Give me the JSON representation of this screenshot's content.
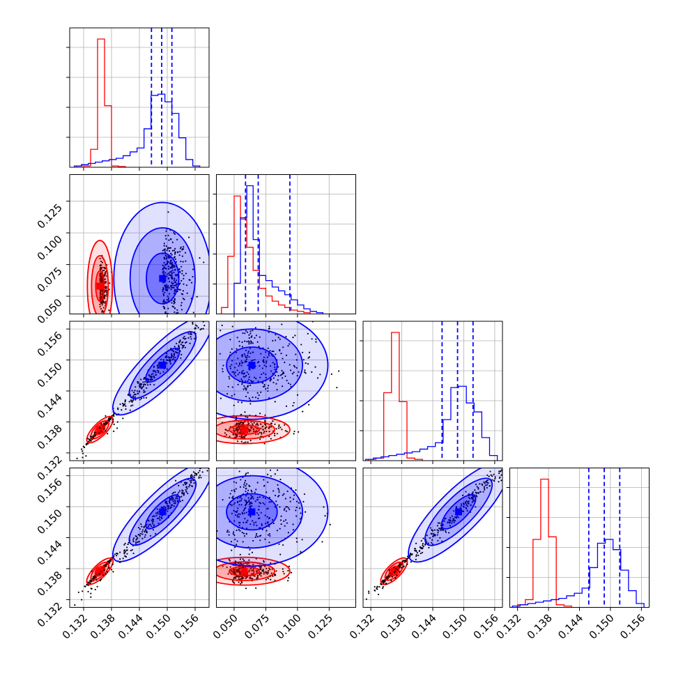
{
  "chart_data": {
    "type": "scatter",
    "plot_kind": "corner",
    "grid": true,
    "legend": "none",
    "n_params": 4,
    "colors": {
      "red": "#ff0000",
      "blue": "#0000ff"
    },
    "ranges": [
      [
        0.129,
        0.159
      ],
      [
        0.036,
        0.146
      ],
      [
        0.1305,
        0.1575
      ],
      [
        0.1305,
        0.1575
      ]
    ],
    "ticks": [
      [
        "0.132",
        "0.138",
        "0.144",
        "0.150",
        "0.156"
      ],
      [
        "0.050",
        "0.075",
        "0.100",
        "0.125"
      ],
      [
        "0.132",
        "0.138",
        "0.144",
        "0.150",
        "0.156"
      ],
      [
        "0.132",
        "0.138",
        "0.144",
        "0.150",
        "0.156"
      ]
    ],
    "series": [
      {
        "color": "red",
        "quantiles": [],
        "centers": [
          0.1355,
          0.058,
          0.1365,
          0.1375
        ],
        "hist": [
          {
            "edges_from": 0.1305,
            "bin": 0.0015,
            "heights": [
              0.01,
              0.01,
              0.14,
              1.0,
              0.48,
              0.01,
              0.005
            ]
          },
          {
            "edges_from": 0.04,
            "bin": 0.005,
            "heights": [
              0.05,
              0.45,
              0.92,
              0.74,
              0.52,
              0.34,
              0.2,
              0.14,
              0.1,
              0.07,
              0.05,
              0.03,
              0.02,
              0.01
            ]
          },
          {
            "edges_from": 0.1315,
            "bin": 0.0015,
            "heights": [
              0.01,
              0.02,
              0.53,
              1.0,
              0.46,
              0.02,
              0.01
            ]
          },
          {
            "edges_from": 0.132,
            "bin": 0.0015,
            "heights": [
              0.02,
              0.06,
              0.53,
              1.0,
              0.55,
              0.02,
              0.01
            ]
          }
        ]
      },
      {
        "color": "blue",
        "quantiles": [
          [
            0.1466,
            0.1488,
            0.151
          ],
          [
            0.059,
            0.069,
            0.094
          ],
          [
            0.1458,
            0.1488,
            0.1518
          ],
          [
            0.1458,
            0.1488,
            0.1518
          ]
        ],
        "centers": [
          0.149,
          0.064,
          0.149,
          0.149
        ],
        "hist": [
          {
            "edges_from": 0.13,
            "bin": 0.0015,
            "heights": [
              0.01,
              0.02,
              0.03,
              0.04,
              0.05,
              0.06,
              0.07,
              0.09,
              0.12,
              0.15,
              0.3,
              0.56,
              0.57,
              0.51,
              0.42,
              0.23,
              0.06,
              0.01
            ]
          },
          {
            "edges_from": 0.05,
            "bin": 0.005,
            "heights": [
              0.24,
              0.75,
              1.0,
              0.58,
              0.3,
              0.26,
              0.21,
              0.18,
              0.15,
              0.11,
              0.07,
              0.04,
              0.02,
              0.01
            ]
          },
          {
            "edges_from": 0.131,
            "bin": 0.0015,
            "heights": [
              0.01,
              0.02,
              0.03,
              0.04,
              0.05,
              0.06,
              0.07,
              0.09,
              0.11,
              0.14,
              0.32,
              0.57,
              0.58,
              0.45,
              0.38,
              0.18,
              0.04
            ]
          },
          {
            "edges_from": 0.131,
            "bin": 0.0015,
            "heights": [
              0.01,
              0.02,
              0.03,
              0.04,
              0.05,
              0.06,
              0.07,
              0.09,
              0.11,
              0.15,
              0.31,
              0.5,
              0.53,
              0.45,
              0.29,
              0.13,
              0.03
            ]
          }
        ]
      }
    ]
  }
}
